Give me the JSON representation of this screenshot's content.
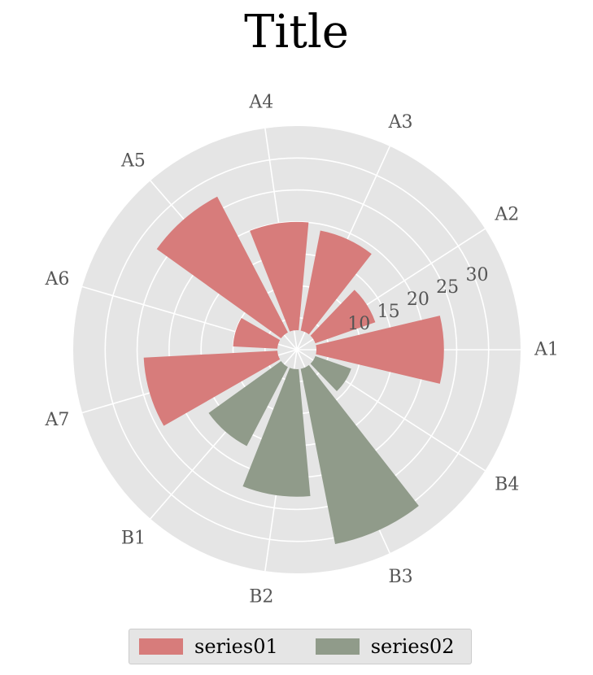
{
  "chart_data": {
    "type": "polar-bar",
    "title": "Title",
    "categories": [
      "A1",
      "A2",
      "A3",
      "A4",
      "A5",
      "A6",
      "A7",
      "B1",
      "B2",
      "B3",
      "B4"
    ],
    "radial_ticks": [
      10,
      15,
      20,
      25,
      30
    ],
    "rlim": [
      0,
      35
    ],
    "grid": true,
    "legend_position": "bottom",
    "series": [
      {
        "name": "series01",
        "color": "#d77c7b",
        "values": [
          [
            0,
            23
          ],
          [
            1,
            13
          ],
          [
            2,
            19
          ],
          [
            3,
            20
          ],
          [
            4,
            27
          ],
          [
            5,
            10
          ],
          [
            6,
            24
          ]
        ]
      },
      {
        "name": "series02",
        "color": "#909b8a",
        "values": [
          [
            7,
            17
          ],
          [
            8,
            23
          ],
          [
            9,
            31
          ],
          [
            10,
            9
          ]
        ]
      }
    ]
  }
}
